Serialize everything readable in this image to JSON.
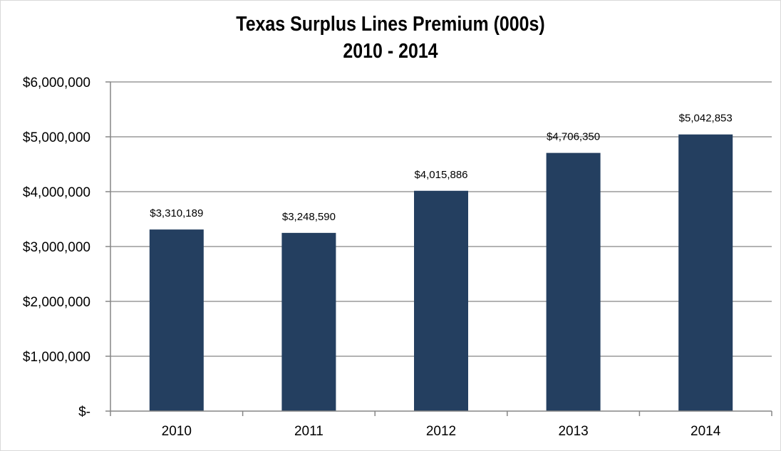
{
  "chart_data": {
    "type": "bar",
    "title": "Texas Surplus Lines Premium (000s)",
    "subtitle": "2010 - 2014",
    "xlabel": "",
    "ylabel": "",
    "categories": [
      "2010",
      "2011",
      "2012",
      "2013",
      "2014"
    ],
    "values": [
      3310189,
      3248590,
      4015886,
      4706350,
      5042853
    ],
    "data_labels": [
      "$3,310,189",
      "$3,248,590",
      "$4,015,886",
      "$4,706,350",
      "$5,042,853"
    ],
    "ylim": [
      0,
      6000000
    ],
    "yticks": [
      0,
      1000000,
      2000000,
      3000000,
      4000000,
      5000000,
      6000000
    ],
    "ytick_labels": [
      "$-",
      "$1,000,000",
      "$2,000,000",
      "$3,000,000",
      "$4,000,000",
      "$5,000,000",
      "$6,000,000"
    ],
    "grid": true,
    "legend": "none",
    "colors": {
      "bar": "#243f60",
      "grid": "#9a9a9a",
      "axis": "#868686"
    }
  }
}
